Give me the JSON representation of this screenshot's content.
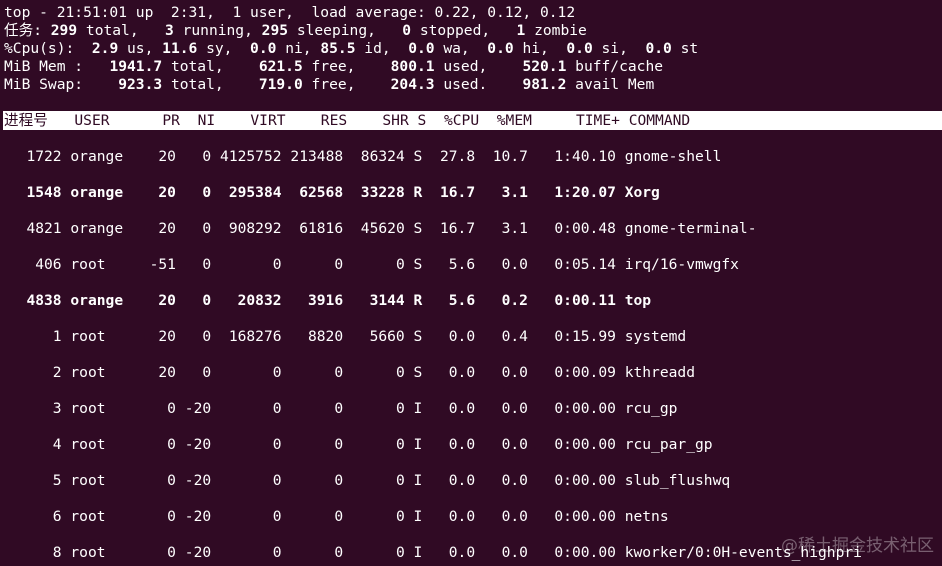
{
  "summary": [
    [
      {
        "t": "top - 21:51:01 up  2:31,  1 user,  load average: 0.22, 0.12, 0.12",
        "b": false
      }
    ],
    [
      {
        "t": "任务: ",
        "b": false
      },
      {
        "t": "299",
        "b": true
      },
      {
        "t": " total,   ",
        "b": false
      },
      {
        "t": "3",
        "b": true
      },
      {
        "t": " running, ",
        "b": false
      },
      {
        "t": "295",
        "b": true
      },
      {
        "t": " sleeping,   ",
        "b": false
      },
      {
        "t": "0",
        "b": true
      },
      {
        "t": " stopped,   ",
        "b": false
      },
      {
        "t": "1",
        "b": true
      },
      {
        "t": " zombie",
        "b": false
      }
    ],
    [
      {
        "t": "%Cpu(s):  ",
        "b": false
      },
      {
        "t": "2.9",
        "b": true
      },
      {
        "t": " us, ",
        "b": false
      },
      {
        "t": "11.6",
        "b": true
      },
      {
        "t": " sy,  ",
        "b": false
      },
      {
        "t": "0.0",
        "b": true
      },
      {
        "t": " ni, ",
        "b": false
      },
      {
        "t": "85.5",
        "b": true
      },
      {
        "t": " id,  ",
        "b": false
      },
      {
        "t": "0.0",
        "b": true
      },
      {
        "t": " wa,  ",
        "b": false
      },
      {
        "t": "0.0",
        "b": true
      },
      {
        "t": " hi,  ",
        "b": false
      },
      {
        "t": "0.0",
        "b": true
      },
      {
        "t": " si,  ",
        "b": false
      },
      {
        "t": "0.0",
        "b": true
      },
      {
        "t": " st",
        "b": false
      }
    ],
    [
      {
        "t": "MiB Mem :   ",
        "b": false
      },
      {
        "t": "1941.7",
        "b": true
      },
      {
        "t": " total,    ",
        "b": false
      },
      {
        "t": "621.5",
        "b": true
      },
      {
        "t": " free,    ",
        "b": false
      },
      {
        "t": "800.1",
        "b": true
      },
      {
        "t": " used,    ",
        "b": false
      },
      {
        "t": "520.1",
        "b": true
      },
      {
        "t": " buff/cache",
        "b": false
      }
    ],
    [
      {
        "t": "MiB Swap:    ",
        "b": false
      },
      {
        "t": "923.3",
        "b": true
      },
      {
        "t": " total,    ",
        "b": false
      },
      {
        "t": "719.0",
        "b": true
      },
      {
        "t": " free,    ",
        "b": false
      },
      {
        "t": "204.3",
        "b": true
      },
      {
        "t": " used.    ",
        "b": false
      },
      {
        "t": "981.2",
        "b": true
      },
      {
        "t": " avail Mem",
        "b": false
      }
    ]
  ],
  "columns": [
    "进程号",
    "USER",
    "PR",
    "NI",
    "VIRT",
    "RES",
    "SHR",
    "S",
    "%CPU",
    "%MEM",
    "TIME+",
    "COMMAND"
  ],
  "processes": [
    {
      "pid": "1722",
      "user": "orange",
      "pr": "20",
      "ni": "0",
      "virt": "4125752",
      "res": "213488",
      "shr": "86324",
      "s": "S",
      "cpu": "27.8",
      "mem": "10.7",
      "time": "1:40.10",
      "command": "gnome-shell",
      "bold": false
    },
    {
      "pid": "1548",
      "user": "orange",
      "pr": "20",
      "ni": "0",
      "virt": "295384",
      "res": "62568",
      "shr": "33228",
      "s": "R",
      "cpu": "16.7",
      "mem": "3.1",
      "time": "1:20.07",
      "command": "Xorg",
      "bold": true
    },
    {
      "pid": "4821",
      "user": "orange",
      "pr": "20",
      "ni": "0",
      "virt": "908292",
      "res": "61816",
      "shr": "45620",
      "s": "S",
      "cpu": "16.7",
      "mem": "3.1",
      "time": "0:00.48",
      "command": "gnome-terminal-",
      "bold": false
    },
    {
      "pid": "406",
      "user": "root",
      "pr": "-51",
      "ni": "0",
      "virt": "0",
      "res": "0",
      "shr": "0",
      "s": "S",
      "cpu": "5.6",
      "mem": "0.0",
      "time": "0:05.14",
      "command": "irq/16-vmwgfx",
      "bold": false
    },
    {
      "pid": "4838",
      "user": "orange",
      "pr": "20",
      "ni": "0",
      "virt": "20832",
      "res": "3916",
      "shr": "3144",
      "s": "R",
      "cpu": "5.6",
      "mem": "0.2",
      "time": "0:00.11",
      "command": "top",
      "bold": true
    },
    {
      "pid": "1",
      "user": "root",
      "pr": "20",
      "ni": "0",
      "virt": "168276",
      "res": "8820",
      "shr": "5660",
      "s": "S",
      "cpu": "0.0",
      "mem": "0.4",
      "time": "0:15.99",
      "command": "systemd",
      "bold": false
    },
    {
      "pid": "2",
      "user": "root",
      "pr": "20",
      "ni": "0",
      "virt": "0",
      "res": "0",
      "shr": "0",
      "s": "S",
      "cpu": "0.0",
      "mem": "0.0",
      "time": "0:00.09",
      "command": "kthreadd",
      "bold": false
    },
    {
      "pid": "3",
      "user": "root",
      "pr": "0",
      "ni": "-20",
      "virt": "0",
      "res": "0",
      "shr": "0",
      "s": "I",
      "cpu": "0.0",
      "mem": "0.0",
      "time": "0:00.00",
      "command": "rcu_gp",
      "bold": false
    },
    {
      "pid": "4",
      "user": "root",
      "pr": "0",
      "ni": "-20",
      "virt": "0",
      "res": "0",
      "shr": "0",
      "s": "I",
      "cpu": "0.0",
      "mem": "0.0",
      "time": "0:00.00",
      "command": "rcu_par_gp",
      "bold": false
    },
    {
      "pid": "5",
      "user": "root",
      "pr": "0",
      "ni": "-20",
      "virt": "0",
      "res": "0",
      "shr": "0",
      "s": "I",
      "cpu": "0.0",
      "mem": "0.0",
      "time": "0:00.00",
      "command": "slub_flushwq",
      "bold": false
    },
    {
      "pid": "6",
      "user": "root",
      "pr": "0",
      "ni": "-20",
      "virt": "0",
      "res": "0",
      "shr": "0",
      "s": "I",
      "cpu": "0.0",
      "mem": "0.0",
      "time": "0:00.00",
      "command": "netns",
      "bold": false
    },
    {
      "pid": "8",
      "user": "root",
      "pr": "0",
      "ni": "-20",
      "virt": "0",
      "res": "0",
      "shr": "0",
      "s": "I",
      "cpu": "0.0",
      "mem": "0.0",
      "time": "0:00.00",
      "command": "kworker/0:0H-events_highpri",
      "bold": false
    }
  ],
  "watermark": "@稀土掘金技术社区",
  "colors": {
    "background": "#300a24",
    "foreground": "#ffffff",
    "header_bg": "#ffffff"
  }
}
